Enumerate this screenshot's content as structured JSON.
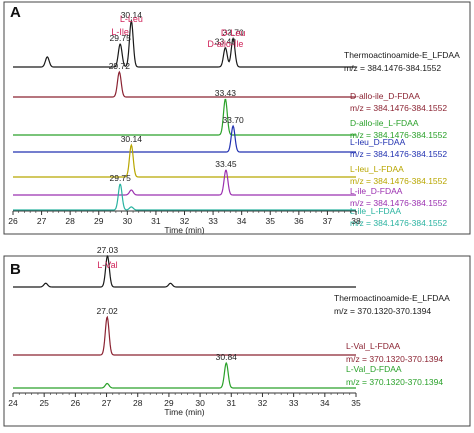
{
  "chart_data": [
    {
      "type": "line",
      "panel_label": "A",
      "xlabel": "Time (min)",
      "xlim": [
        26,
        38
      ],
      "x_ticks": [
        26,
        27,
        28,
        29,
        30,
        31,
        32,
        33,
        34,
        35,
        36,
        37,
        38
      ],
      "grid": false,
      "series": [
        {
          "name": "Thermoactinoamide-E_LFDAA",
          "mz": "m/z = 384.1476-384.1552",
          "color": "#1a1a1a",
          "peaks": [
            {
              "x": 27.2,
              "h": 0.22
            },
            {
              "x": 29.75,
              "h": 0.5,
              "label": "29.75",
              "name": "L-Ile"
            },
            {
              "x": 30.14,
              "h": 1.0,
              "label": "30.14",
              "name": "L-Leu"
            },
            {
              "x": 33.43,
              "h": 0.42,
              "label": "33.43",
              "name": "D-allo-Ile"
            },
            {
              "x": 33.7,
              "h": 0.62,
              "label": "33.70",
              "name": "D-Leu"
            }
          ]
        },
        {
          "name": "D-allo-ile_D-FDAA",
          "mz": "m/z = 384.1476-384.1552",
          "color": "#8b2332",
          "peaks": [
            {
              "x": 29.72,
              "h": 1.0,
              "label": "29.72"
            }
          ]
        },
        {
          "name": "D-allo-ile_L-FDAA",
          "mz": "m/z = 384.1476-384.1552",
          "color": "#2aa12a",
          "peaks": [
            {
              "x": 33.43,
              "h": 1.0,
              "label": "33.43"
            }
          ]
        },
        {
          "name": "L-leu_D-FDAA",
          "mz": "m/z = 384.1476-384.1552",
          "color": "#2030b0",
          "peaks": [
            {
              "x": 33.7,
              "h": 1.0,
              "label": "33.70"
            }
          ]
        },
        {
          "name": "L-leu_L-FDAA",
          "mz": "m/z = 384.1476-384.1552",
          "color": "#b8a600",
          "peaks": [
            {
              "x": 30.14,
              "h": 1.0,
              "label": "30.14"
            }
          ]
        },
        {
          "name": "L-ile_D-FDAA",
          "mz": "m/z = 384.1476-384.1552",
          "color": "#9b30b0",
          "peaks": [
            {
              "x": 30.14,
              "h": 0.2
            },
            {
              "x": 33.45,
              "h": 1.0,
              "label": "33.45"
            }
          ]
        },
        {
          "name": "L-ile_L-FDAA",
          "mz": "m/z = 384.1476-384.1552",
          "color": "#2ab3a0",
          "peaks": [
            {
              "x": 29.75,
              "h": 1.0,
              "label": "29.75"
            },
            {
              "x": 30.14,
              "h": 0.12
            }
          ]
        }
      ]
    },
    {
      "type": "line",
      "panel_label": "B",
      "xlabel": "Time (min)",
      "xlim": [
        24,
        35
      ],
      "x_ticks": [
        24,
        25,
        26,
        27,
        28,
        29,
        30,
        31,
        32,
        33,
        34,
        35
      ],
      "grid": false,
      "series": [
        {
          "name": "Thermoactinoamide-E_LFDAA",
          "mz": "m/z = 370.1320-370.1394",
          "color": "#1a1a1a",
          "peaks": [
            {
              "x": 25.05,
              "h": 0.12
            },
            {
              "x": 27.03,
              "h": 1.0,
              "label": "27.03",
              "name": "L-Val"
            },
            {
              "x": 29.05,
              "h": 0.12
            }
          ]
        },
        {
          "name": "L-Val_L-FDAA",
          "mz": "m/z = 370.1320-370.1394",
          "color": "#8b2332",
          "peaks": [
            {
              "x": 27.02,
              "h": 1.0,
              "label": "27.02"
            }
          ]
        },
        {
          "name": "L-Val_D-FDAA",
          "mz": "m/z = 370.1320-370.1394",
          "color": "#2aa12a",
          "peaks": [
            {
              "x": 27.02,
              "h": 0.18
            },
            {
              "x": 30.84,
              "h": 1.0,
              "label": "30.84"
            }
          ]
        }
      ]
    }
  ]
}
